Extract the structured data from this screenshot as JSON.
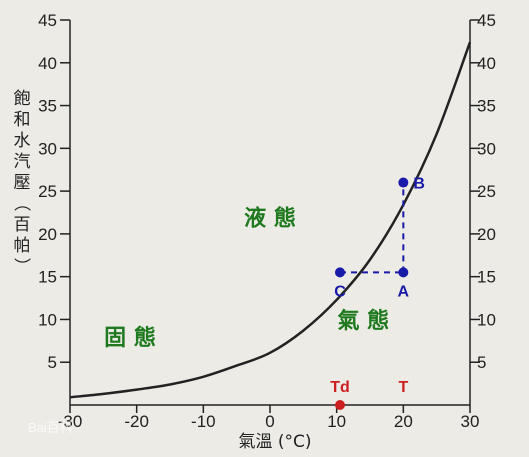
{
  "chart_data": {
    "type": "line",
    "xlabel": "氣溫 (°C)",
    "ylabel": "飽和水汽壓（百帕）",
    "xlim": [
      -30,
      30
    ],
    "ylim": [
      0,
      45
    ],
    "x_ticks": [
      -30,
      -20,
      -10,
      0,
      10,
      20,
      30
    ],
    "x_tick_labels": [
      "-30",
      "-20",
      "-10",
      "0",
      "10",
      "20",
      "30"
    ],
    "y_ticks": [
      5,
      10,
      15,
      20,
      25,
      30,
      35,
      40,
      45
    ],
    "y_tick_labels": [
      "5",
      "10",
      "15",
      "20",
      "25",
      "30",
      "35",
      "40",
      "45"
    ],
    "grid": false,
    "series": [
      {
        "x": [
          -30,
          -25,
          -20,
          -15,
          -10,
          -5,
          0,
          5,
          10,
          15,
          20,
          25,
          30
        ],
        "y": [
          0.9,
          1.3,
          1.8,
          2.4,
          3.3,
          4.6,
          6.1,
          8.7,
          12.3,
          17.0,
          23.4,
          31.7,
          42.4
        ],
        "color": "#222222"
      }
    ],
    "points": [
      {
        "label": "A",
        "x": 20,
        "y": 15.5,
        "color": "#1a1aa8"
      },
      {
        "label": "B",
        "x": 20,
        "y": 26,
        "color": "#1a1aa8"
      },
      {
        "label": "C",
        "x": 10.5,
        "y": 15.5,
        "color": "#1a1aa8"
      },
      {
        "label": "Td",
        "x": 10.5,
        "y": 0,
        "color": "#cc1f1f"
      }
    ],
    "t_marker": {
      "label": "T",
      "x": 20,
      "color": "#cc1f1f"
    },
    "region_labels": [
      {
        "text": "液 態",
        "x": 0,
        "y": 21
      },
      {
        "text": "固 態",
        "x": -21,
        "y": 7
      },
      {
        "text": "氣 態",
        "x": 14,
        "y": 9
      }
    ]
  },
  "watermark": "Bai百科"
}
